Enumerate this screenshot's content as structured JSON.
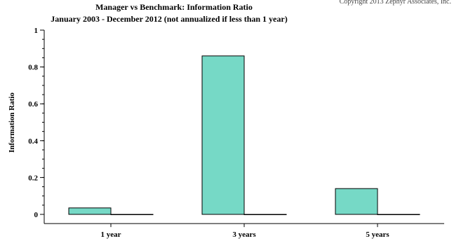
{
  "corner_note": "Copyright 2013 Zephyr Associates, Inc.",
  "chart_data": {
    "type": "bar",
    "title": "Manager vs Benchmark: Information Ratio",
    "subtitle": "January 2003 - December 2012 (not annualized if less than 1 year)",
    "ylabel": "Information Ratio",
    "xlabel": "",
    "ylim": [
      -0.05,
      1.0
    ],
    "yticks": [
      0,
      0.2,
      0.4,
      0.6,
      0.8,
      1
    ],
    "ytick_labels": [
      "0",
      "0.2",
      "0.4",
      "0.6",
      "0.8",
      "1"
    ],
    "grid": false,
    "categories": [
      "1 year",
      "3 years",
      "5 years"
    ],
    "series": [
      {
        "values": [
          0.035,
          0.86,
          0.14
        ],
        "color": "#76d9c6"
      },
      {
        "values": [
          0,
          0,
          0
        ],
        "color": "#76d9c6"
      }
    ]
  }
}
